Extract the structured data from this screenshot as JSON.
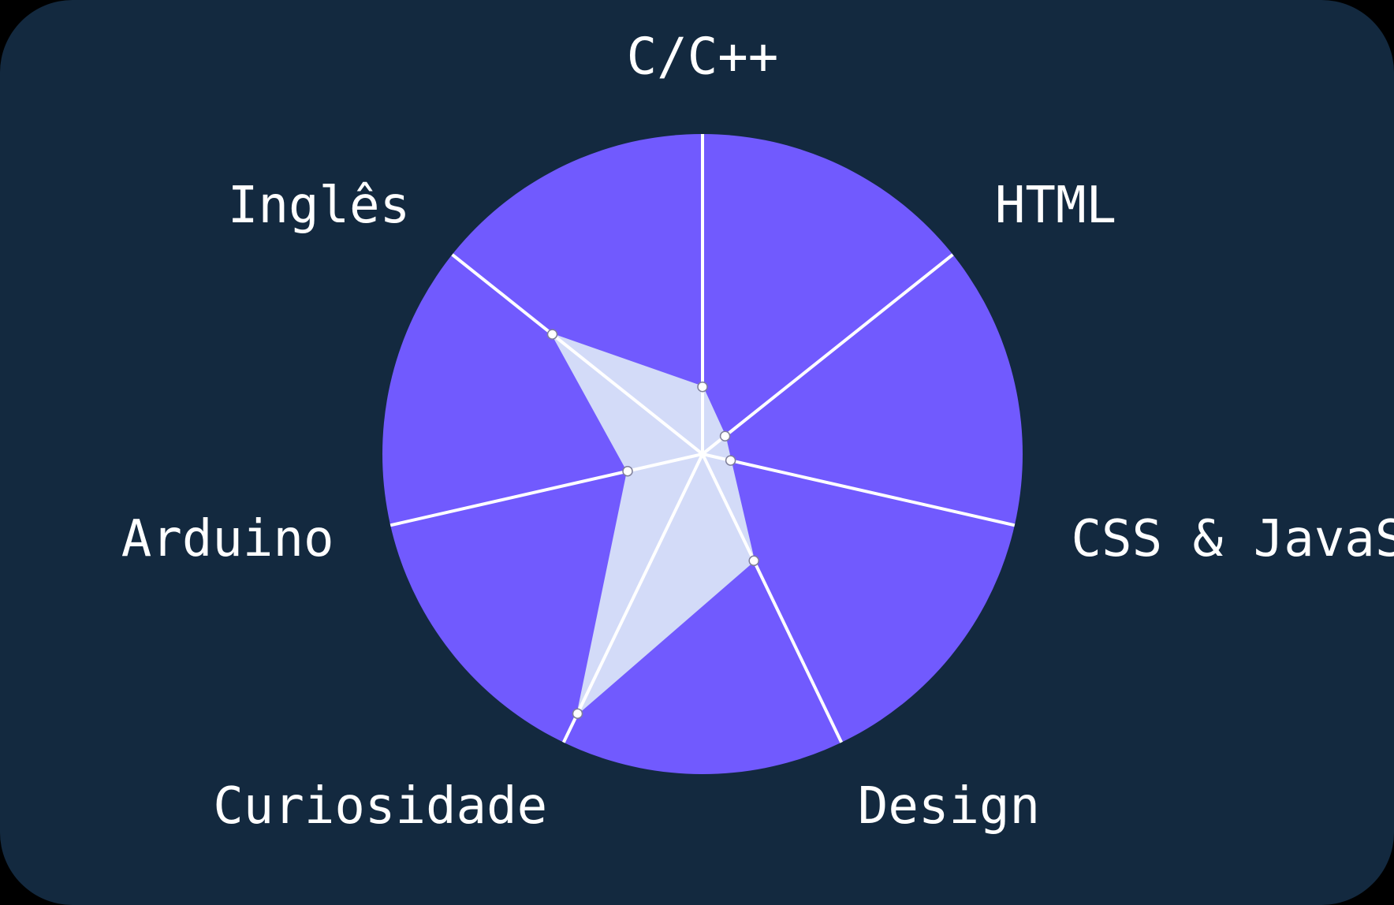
{
  "chart_data": {
    "type": "radar",
    "axes": [
      "C/C++",
      "HTML",
      "CSS & JavaScript",
      "Design",
      "Curiosidade",
      "Arduino",
      "Inglês"
    ],
    "values": [
      0.21,
      0.09,
      0.09,
      0.37,
      0.9,
      0.24,
      0.6
    ],
    "range": [
      0,
      1
    ],
    "grid": false,
    "colors": {
      "background": "#13293f",
      "disc": "#715afe",
      "area": "#d3dbf8",
      "axis_line": "#ffffff",
      "point": "#ffffff",
      "label": "#ffffff"
    }
  }
}
